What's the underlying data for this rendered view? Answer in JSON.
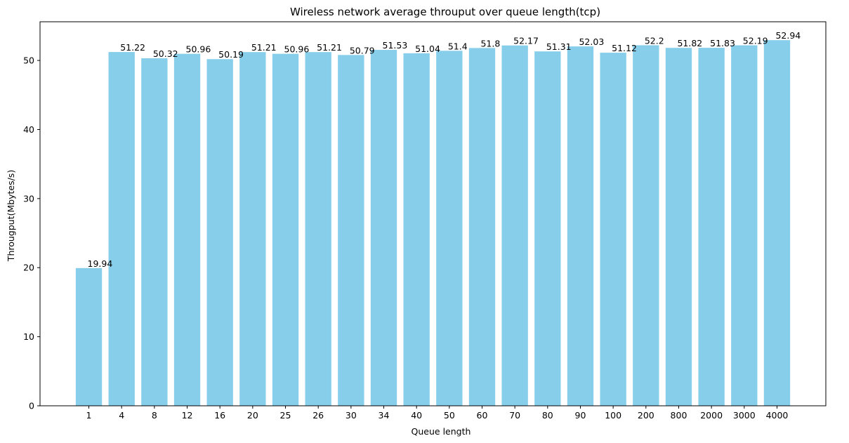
{
  "chart_data": {
    "type": "bar",
    "title": "Wireless network average throuput over queue length(tcp)",
    "xlabel": "Queue length",
    "ylabel": "Througput(Mbytes/s)",
    "categories": [
      "1",
      "4",
      "8",
      "12",
      "16",
      "20",
      "25",
      "26",
      "30",
      "34",
      "40",
      "50",
      "60",
      "70",
      "80",
      "90",
      "100",
      "200",
      "800",
      "2000",
      "3000",
      "4000"
    ],
    "values": [
      19.94,
      51.22,
      50.32,
      50.96,
      50.19,
      51.21,
      50.96,
      51.21,
      50.79,
      51.53,
      51.04,
      51.4,
      51.8,
      52.17,
      51.31,
      52.03,
      51.12,
      52.2,
      51.82,
      51.83,
      52.19,
      52.94
    ],
    "value_labels": [
      "19.94",
      "51.22",
      "50.32",
      "50.96",
      "50.19",
      "51.21",
      "50.96",
      "51.21",
      "50.79",
      "51.53",
      "51.04",
      "51.4",
      "51.8",
      "52.17",
      "51.31",
      "52.03",
      "51.12",
      "52.2",
      "51.82",
      "51.83",
      "52.19",
      "52.94"
    ],
    "ylim": [
      0,
      55.6
    ],
    "yticks": [
      0,
      10,
      20,
      30,
      40,
      50
    ],
    "ytick_labels": [
      "0",
      "10",
      "20",
      "30",
      "40",
      "50"
    ],
    "bar_color": "#87CEEB",
    "grid": false,
    "legend": "none"
  }
}
